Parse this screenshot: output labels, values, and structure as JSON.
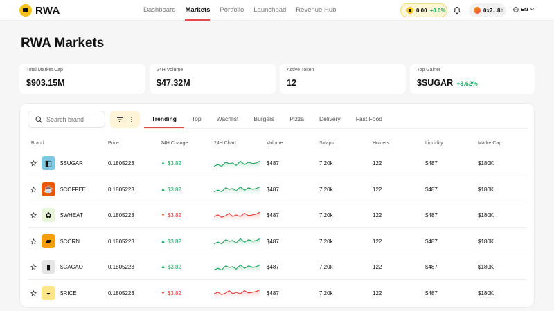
{
  "nav": {
    "logo_text": "RWA",
    "links": [
      {
        "label": "Dashboard",
        "active": false
      },
      {
        "label": "Markets",
        "active": true
      },
      {
        "label": "Portfolio",
        "active": false
      },
      {
        "label": "Launchpad",
        "active": false
      },
      {
        "label": "Revenue Hub",
        "active": false
      }
    ],
    "balance": {
      "amount": "0.00",
      "change": "+0.0%"
    },
    "wallet": "0x7...8b",
    "lang": "EN"
  },
  "page_title": "RWA Markets",
  "stats": [
    {
      "label": "Total Market Cap",
      "value": "$903.15M",
      "sub": ""
    },
    {
      "label": "24H Volume",
      "value": "$47.32M",
      "sub": ""
    },
    {
      "label": "Active Token",
      "value": "12",
      "sub": ""
    },
    {
      "label": "Top Gainer",
      "value": "$SUGAR",
      "sub": "+3.62%"
    }
  ],
  "search": {
    "placeholder": "Search brand"
  },
  "tabs": [
    {
      "label": "Trending",
      "active": true
    },
    {
      "label": "Top",
      "active": false
    },
    {
      "label": "Wachlist",
      "active": false
    },
    {
      "label": "Burgers",
      "active": false
    },
    {
      "label": "Pizza",
      "active": false
    },
    {
      "label": "Delivery",
      "active": false
    },
    {
      "label": "Fast Food",
      "active": false
    }
  ],
  "columns": [
    "Brand",
    "Price",
    "24H Change",
    "24H Chart",
    "Volume",
    "Swaps",
    "Holders",
    "Liquidity",
    "MarketCap"
  ],
  "rows": [
    {
      "brand": "$SUGAR",
      "icon": "sugar-icon",
      "icon_bg": "#7ec8e3",
      "glyph": "◧",
      "price": "0.1805223",
      "change": "$3.82",
      "dir": "up",
      "volume": "$487",
      "swaps": "7.20k",
      "holders": "122",
      "liquidity": "$487",
      "marketcap": "$180K"
    },
    {
      "brand": "$COFFEE",
      "icon": "coffee-icon",
      "icon_bg": "#ea580c",
      "glyph": "☕",
      "price": "0.1805223",
      "change": "$3.82",
      "dir": "up",
      "volume": "$487",
      "swaps": "7.20k",
      "holders": "122",
      "liquidity": "$487",
      "marketcap": "$180K"
    },
    {
      "brand": "$WHEAT",
      "icon": "wheat-icon",
      "icon_bg": "#e8f5d8",
      "glyph": "✿",
      "price": "0.1805223",
      "change": "$3.82",
      "dir": "down",
      "volume": "$487",
      "swaps": "7.20k",
      "holders": "122",
      "liquidity": "$487",
      "marketcap": "$180K"
    },
    {
      "brand": "$CORN",
      "icon": "corn-icon",
      "icon_bg": "#f59e0b",
      "glyph": "▰",
      "price": "0.1805223",
      "change": "$3.82",
      "dir": "up",
      "volume": "$487",
      "swaps": "7.20k",
      "holders": "122",
      "liquidity": "$487",
      "marketcap": "$180K"
    },
    {
      "brand": "$CACAO",
      "icon": "cacao-icon",
      "icon_bg": "#e5e5e5",
      "glyph": "▮",
      "price": "0.1805223",
      "change": "$3.82",
      "dir": "up",
      "volume": "$487",
      "swaps": "7.20k",
      "holders": "122",
      "liquidity": "$487",
      "marketcap": "$180K"
    },
    {
      "brand": "$RICE",
      "icon": "rice-icon",
      "icon_bg": "#fde68a",
      "glyph": "◒",
      "price": "0.1805223",
      "change": "$3.82",
      "dir": "down",
      "volume": "$487",
      "swaps": "7.20k",
      "holders": "122",
      "liquidity": "$487",
      "marketcap": "$180K"
    }
  ],
  "colors": {
    "accent": "#e54848",
    "up": "#1ea560",
    "down": "#e53935",
    "brand": "#f4c21b"
  }
}
